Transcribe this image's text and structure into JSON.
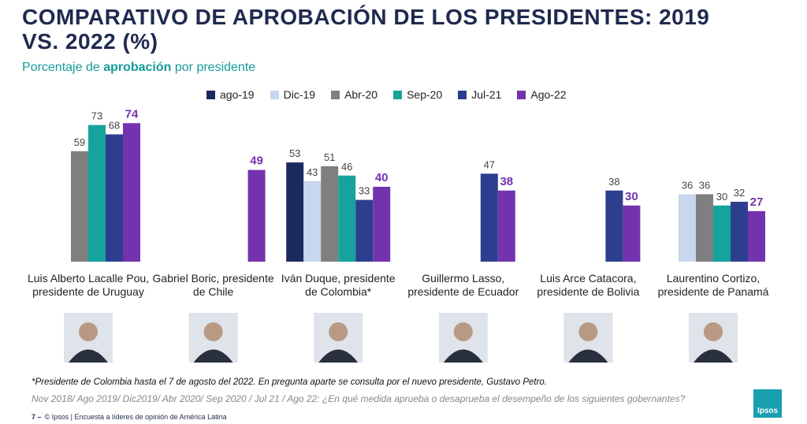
{
  "chart_data": {
    "type": "bar",
    "title": "COMPARATIVO DE APROBACIÓN DE LOS PRESIDENTES: 2019 VS. 2022 (%)",
    "subtitle": [
      "Porcentaje de ",
      "aprobación",
      " por presidente"
    ],
    "categories": [
      "Luis Alberto Lacalle Pou, presidente de Uruguay",
      "Gabriel Boric, presidente de Chile",
      "Iván Duque, presidente de Colombia*",
      "Guillermo Lasso, presidente de Ecuador",
      "Luis Arce Catacora, presidente de Bolivia",
      "Laurentino Cortizo, presidente de Panamá"
    ],
    "series": [
      {
        "name": "ago-19",
        "color": "#1b2a5e",
        "values": [
          null,
          null,
          53,
          null,
          null,
          null
        ]
      },
      {
        "name": "Dic-19",
        "color": "#c8d6ee",
        "values": [
          null,
          null,
          43,
          null,
          null,
          36
        ]
      },
      {
        "name": "Abr-20",
        "color": "#7f7f7f",
        "values": [
          59,
          null,
          51,
          null,
          null,
          36
        ]
      },
      {
        "name": "Sep-20",
        "color": "#16a39e",
        "values": [
          73,
          null,
          46,
          null,
          null,
          30
        ]
      },
      {
        "name": "Jul-21",
        "color": "#2d3e8e",
        "values": [
          68,
          null,
          33,
          47,
          38,
          32
        ]
      },
      {
        "name": "Ago-22",
        "color": "#7433ae",
        "values": [
          74,
          49,
          40,
          38,
          30,
          27
        ]
      }
    ],
    "ylim": [
      0,
      80
    ],
    "footnote": "*Presidente de Colombia hasta el 7 de agosto del 2022. En pregunta aparte se consulta por el nuevo presidente, Gustavo Petro.",
    "question": "Nov 2018/ Ago 2019/ Dic2019/ Abr 2020/ Sep 2020 / Jul 21 / Ago 22: ¿En qué medida aprueba o desaprueba el desempeño de los siguientes gobernantes?",
    "page_number": "7 –",
    "source": "© Ipsos | Encuesta a líderes de opinión de América Latina",
    "logo": "Ipsos"
  }
}
